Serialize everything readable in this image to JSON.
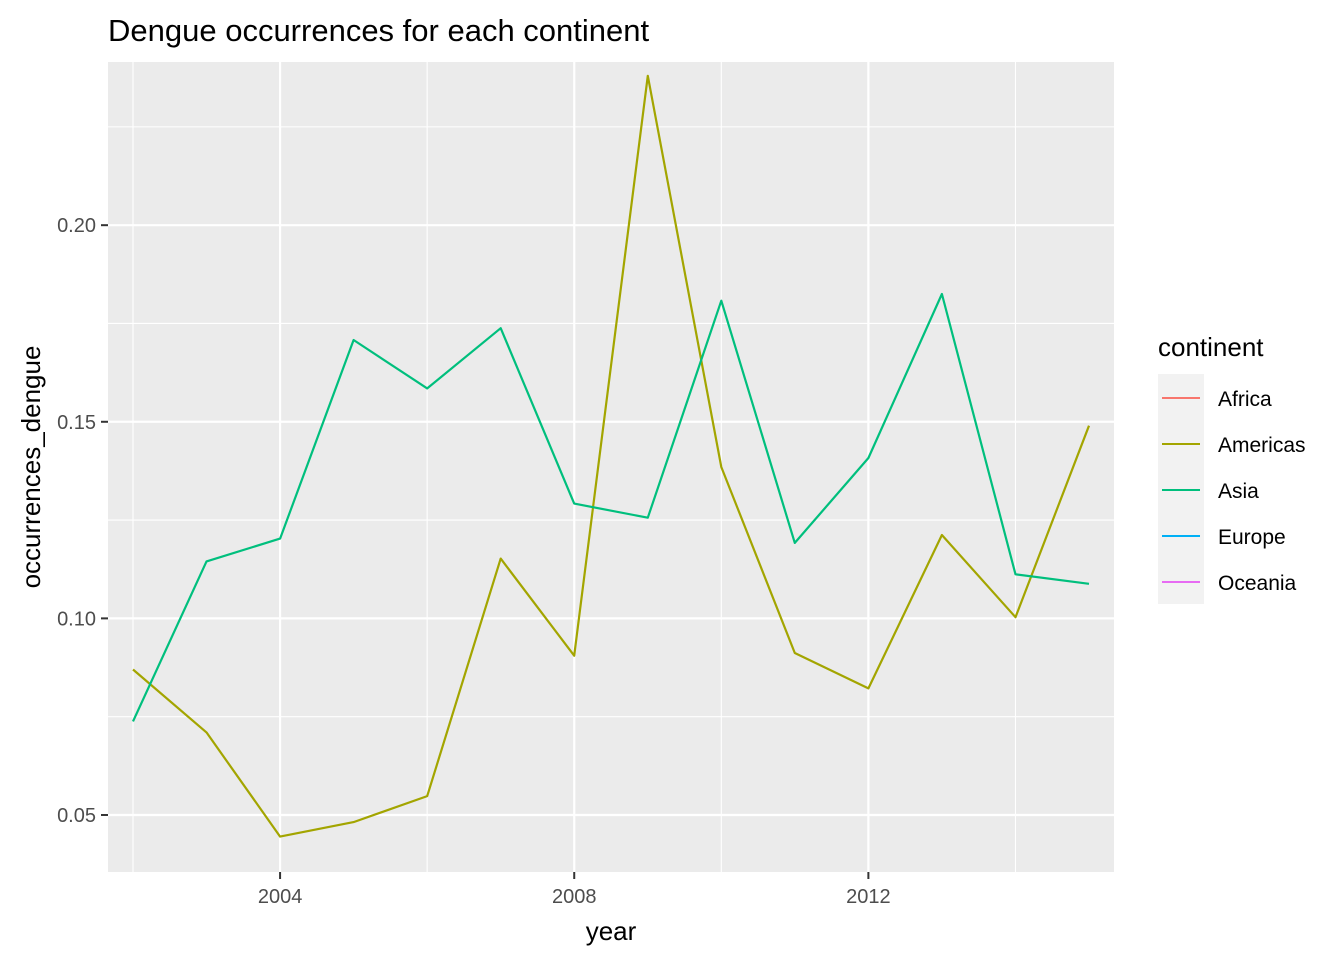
{
  "chart_data": {
    "type": "line",
    "title": "Dengue occurrences for each continent",
    "xlabel": "year",
    "ylabel": "occurrences_dengue",
    "xlim": [
      2001.66,
      2015.34
    ],
    "ylim": [
      0.0355,
      0.2415
    ],
    "x_ticks": [
      2004,
      2008,
      2012
    ],
    "x_tick_labels": [
      "2004",
      "2008",
      "2012"
    ],
    "y_ticks": [
      0.05,
      0.1,
      0.15,
      0.2
    ],
    "y_tick_labels": [
      "0.05",
      "0.10",
      "0.15",
      "0.20"
    ],
    "grid": true,
    "legend": {
      "title": "continent",
      "position": "right",
      "entries": [
        {
          "name": "Africa",
          "color": "#F8766D"
        },
        {
          "name": "Americas",
          "color": "#A3A500"
        },
        {
          "name": "Asia",
          "color": "#00BF7D"
        },
        {
          "name": "Europe",
          "color": "#00B0F6"
        },
        {
          "name": "Oceania",
          "color": "#E76BF3"
        }
      ]
    },
    "series": [
      {
        "name": "Americas",
        "color": "#A3A500",
        "x": [
          2002,
          2003,
          2004,
          2005,
          2006,
          2007,
          2008,
          2009,
          2010,
          2011,
          2012,
          2013,
          2014,
          2015
        ],
        "values": [
          0.087,
          0.071,
          0.0445,
          0.0482,
          0.0548,
          0.1152,
          0.0905,
          0.238,
          0.1385,
          0.0912,
          0.0822,
          0.1212,
          0.1003,
          0.149
        ]
      },
      {
        "name": "Asia",
        "color": "#00BF7D",
        "x": [
          2002,
          2003,
          2004,
          2005,
          2006,
          2007,
          2008,
          2009,
          2010,
          2011,
          2012,
          2013,
          2014,
          2015
        ],
        "values": [
          0.0738,
          0.1145,
          0.1203,
          0.1708,
          0.1585,
          0.1738,
          0.1292,
          0.1256,
          0.1808,
          0.1192,
          0.1408,
          0.1825,
          0.1112,
          0.1088
        ]
      }
    ]
  }
}
